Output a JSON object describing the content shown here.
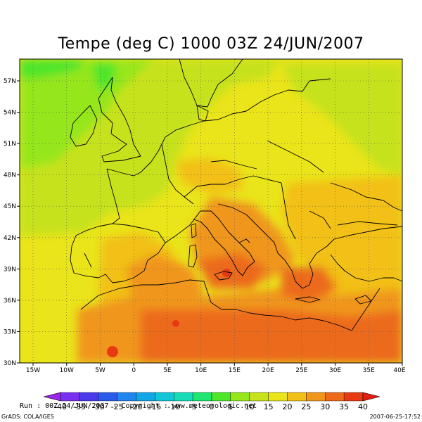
{
  "title": "Tempe (deg C) 1000     03Z 24/JUN/2007",
  "lat_labels": [
    "57N",
    "54N",
    "51N",
    "48N",
    "45N",
    "42N",
    "39N",
    "36N",
    "33N",
    "30N"
  ],
  "lon_labels": [
    "15W",
    "10W",
    "5W",
    "0",
    "5E",
    "10E",
    "15E",
    "20E",
    "25E",
    "30E",
    "35E",
    "40E"
  ],
  "colorbar": {
    "labels": [
      "-40",
      "-35",
      "-30",
      "-25",
      "-20",
      "-15",
      "-10",
      "-5",
      "0",
      "5",
      "10",
      "15",
      "20",
      "25",
      "30",
      "35",
      "40"
    ],
    "colors": [
      "#9a27e6",
      "#7a2ff0",
      "#4a39ea",
      "#2a5ae8",
      "#1e86ee",
      "#12a6e6",
      "#12c6d8",
      "#18dcb8",
      "#1ee66e",
      "#4ee62a",
      "#96e61c",
      "#c6e21a",
      "#eae41a",
      "#f2c018",
      "#f0961a",
      "#ec6a1a",
      "#e83a12",
      "#e41c10"
    ]
  },
  "footer": {
    "run": "Run : 00Z 24/JUN/2007 - Copyright : www.meteorologic.net",
    "grads": "GrADS: COLA/IGES",
    "timestamp": "2007-06-25-17:52"
  }
}
